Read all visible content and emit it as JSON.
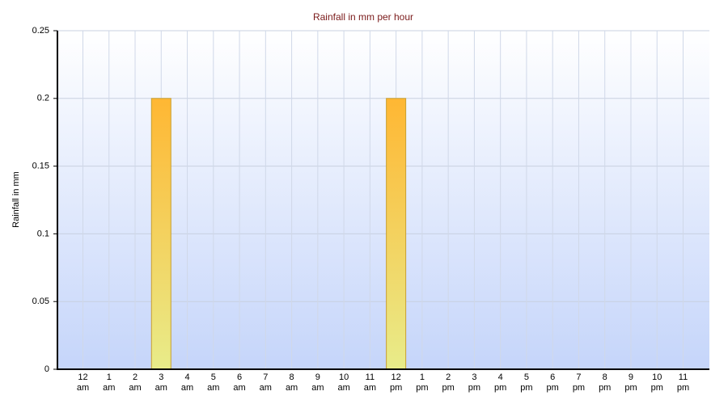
{
  "chart_data": {
    "type": "bar",
    "title": "Rainfall in mm per hour",
    "y_label": "Rainfall in mm",
    "categories": [
      "12\nam",
      "1\nam",
      "2\nam",
      "3\nam",
      "4\nam",
      "5\nam",
      "6\nam",
      "7\nam",
      "8\nam",
      "9\nam",
      "10\nam",
      "11\nam",
      "12\npm",
      "1\npm",
      "2\npm",
      "3\npm",
      "4\npm",
      "5\npm",
      "6\npm",
      "7\npm",
      "8\npm",
      "9\npm",
      "10\npm",
      "11\npm"
    ],
    "values": [
      0,
      0,
      0,
      0.2,
      0,
      0,
      0,
      0,
      0,
      0,
      0,
      0,
      0.2,
      0,
      0,
      0,
      0,
      0,
      0,
      0,
      0,
      0,
      0,
      0
    ],
    "color": "#f5b83a",
    "ylim": [
      0,
      0.25
    ],
    "yticks": [
      0,
      0.05,
      0.1,
      0.15,
      0.2,
      0.25
    ],
    "grid": true
  }
}
